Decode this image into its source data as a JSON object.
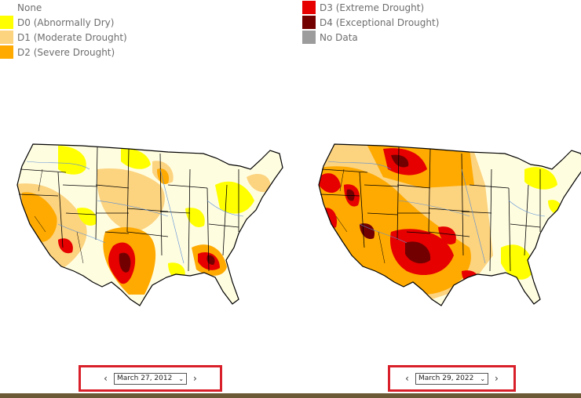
{
  "legend_left": [
    {
      "label": "None",
      "color": "#ffffff"
    },
    {
      "label": "D0 (Abnormally Dry)",
      "color": "#ffff00"
    },
    {
      "label": "D1 (Moderate Drought)",
      "color": "#fcd37f"
    },
    {
      "label": "D2 (Severe Drought)",
      "color": "#ffaa00"
    }
  ],
  "legend_right": [
    {
      "label": "D3 (Extreme Drought)",
      "color": "#e60000"
    },
    {
      "label": "D4 (Exceptional Drought)",
      "color": "#730000"
    },
    {
      "label": "No Data",
      "color": "#9c9c9c"
    }
  ],
  "maps": [
    {
      "date": "March 27, 2012"
    },
    {
      "date": "March 29, 2022"
    }
  ],
  "controls": {
    "prev_icon": "chevron-left-icon",
    "next_icon": "chevron-right-icon",
    "prev": "‹",
    "next": "›",
    "dropdown": "⌄"
  },
  "colors": {
    "highlight": "#d9202a",
    "bottom_bar": "#6b5a35"
  }
}
